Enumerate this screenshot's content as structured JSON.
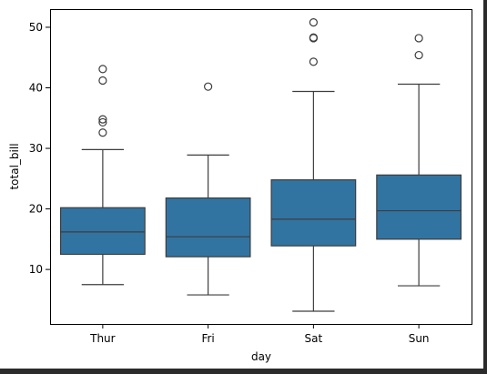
{
  "chart_data": {
    "type": "box",
    "title": "",
    "xlabel": "day",
    "ylabel": "total_bill",
    "ylim": [
      1,
      53
    ],
    "yticks": [
      10,
      20,
      30,
      40,
      50
    ],
    "categories": [
      "Thur",
      "Fri",
      "Sat",
      "Sun"
    ],
    "box_color": "#3274a1",
    "line_color": "#3d3d3d",
    "grid": false,
    "boxes": [
      {
        "category": "Thur",
        "whisker_low": 7.5,
        "q1": 12.5,
        "median": 16.2,
        "q3": 20.2,
        "whisker_high": 29.8,
        "outliers": [
          32.6,
          34.3,
          34.8,
          41.2,
          43.1
        ]
      },
      {
        "category": "Fri",
        "whisker_low": 5.8,
        "q1": 12.1,
        "median": 15.4,
        "q3": 21.8,
        "whisker_high": 28.9,
        "outliers": [
          40.2
        ]
      },
      {
        "category": "Sat",
        "whisker_low": 3.1,
        "q1": 13.9,
        "median": 18.3,
        "q3": 24.8,
        "whisker_high": 39.4,
        "outliers": [
          44.3,
          48.2,
          48.3,
          50.8
        ]
      },
      {
        "category": "Sun",
        "whisker_low": 7.3,
        "q1": 15.0,
        "median": 19.7,
        "q3": 25.6,
        "whisker_high": 40.6,
        "outliers": [
          45.4,
          48.2
        ]
      }
    ]
  }
}
